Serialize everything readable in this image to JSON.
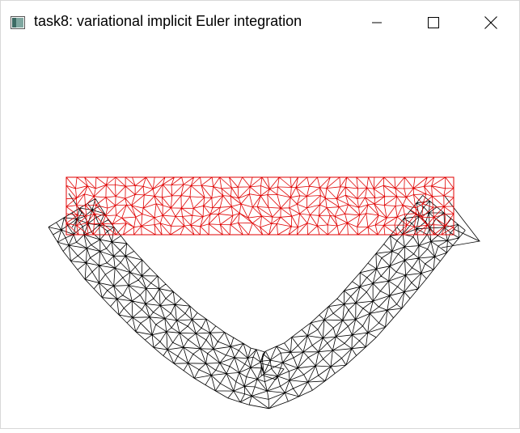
{
  "window": {
    "title": "task8: variational implicit Euler integration",
    "app_icon": "window-app-icon",
    "controls": {
      "minimize_icon": "minimize-icon",
      "maximize_icon": "maximize-icon",
      "close_icon": "close-icon"
    }
  },
  "scene": {
    "rest_mesh_color": "#e00000",
    "deformed_mesh_color": "#000000",
    "background_color": "#ffffff"
  }
}
